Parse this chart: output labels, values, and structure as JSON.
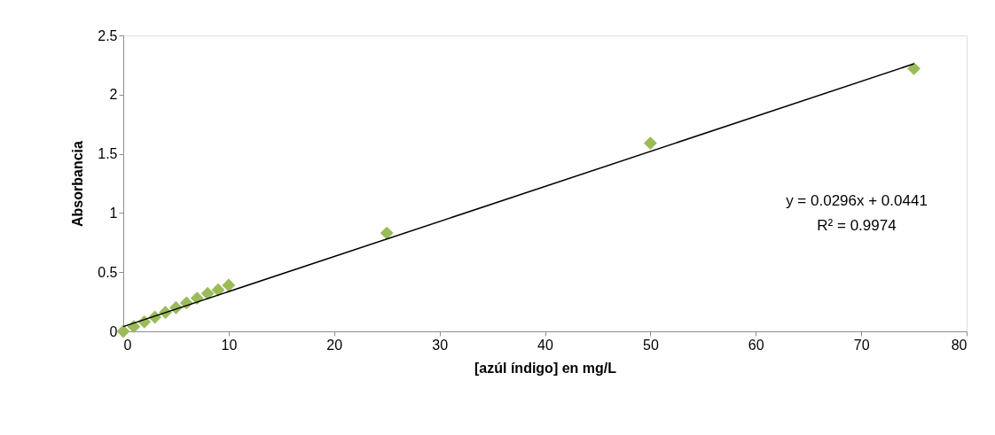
{
  "chart_data": {
    "type": "scatter",
    "xlabel": "[azúl índigo] en mg/L",
    "ylabel": "Absorbancia",
    "grid": false,
    "xlim": [
      0,
      80
    ],
    "xticks": [
      0,
      10,
      20,
      30,
      40,
      50,
      60,
      70,
      80
    ],
    "ylim": [
      0,
      2.5
    ],
    "yticks": [
      0,
      0.5,
      1,
      1.5,
      2,
      2.5
    ],
    "annotations": [
      "y = 0.0296x + 0.0441",
      "R² = 0.9974"
    ],
    "series": [
      {
        "color": "#9bbb59",
        "marker": "diamond",
        "x": [
          0,
          1,
          2,
          3,
          4,
          5,
          6,
          7,
          8,
          9,
          10,
          25,
          50,
          75
        ],
        "values": [
          0,
          0.04,
          0.08,
          0.12,
          0.16,
          0.2,
          0.24,
          0.28,
          0.32,
          0.35,
          0.39,
          0.83,
          1.59,
          2.22
        ]
      },
      {
        "type": "line",
        "marker": "none",
        "color": "#000000",
        "x": [
          0,
          75
        ],
        "values": [
          0.04,
          2.26
        ]
      }
    ]
  }
}
